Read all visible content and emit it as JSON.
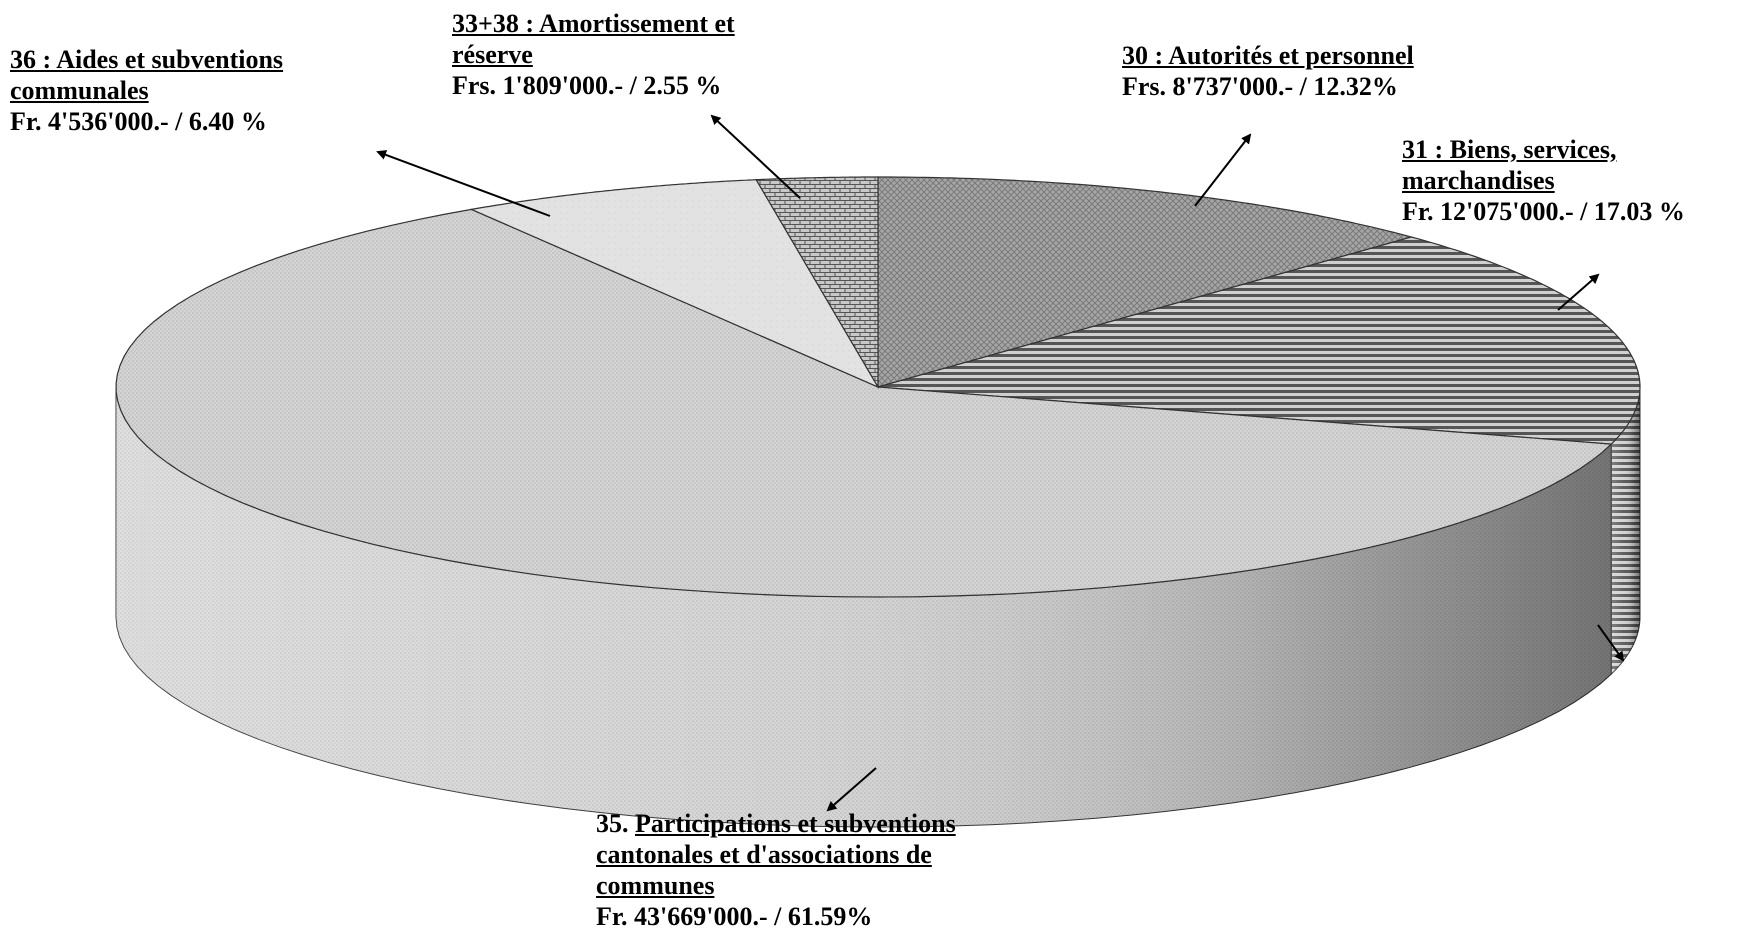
{
  "chart_data": {
    "type": "pie",
    "three_d": true,
    "title": "",
    "legend": "none",
    "slices": [
      {
        "code": "30",
        "label": "30 : Autorités et personnel",
        "amount": "Frs.  8'737'000.- / 12.32%",
        "value": 8737000,
        "percent": 12.32
      },
      {
        "code": "31",
        "label": "31 : Biens, services, marchandises",
        "label_lines": [
          "31 : Biens, services,",
          "marchandises"
        ],
        "amount": "Fr. 12'075'000.- / 17.03 %",
        "value": 12075000,
        "percent": 17.03
      },
      {
        "code": "35",
        "label": "35. Participations et subventions cantonales et d'associations de communes",
        "prefix": "35. ",
        "label_lines": [
          "Participations et subventions",
          "cantonales et d'associations de",
          "communes"
        ],
        "amount": "Fr.  43'669'000.- / 61.59%",
        "value": 43669000,
        "percent": 61.59
      },
      {
        "code": "36",
        "label": "36 : Aides et subventions communales",
        "label_lines": [
          "36 : Aides et subventions",
          "communales"
        ],
        "amount": "Fr. 4'536'000.- /  6.40 %",
        "value": 4536000,
        "percent": 6.4
      },
      {
        "code": "33+38",
        "label": "33+38 : Amortissement et réserve",
        "label_lines": [
          "33+38 : Amortissement et",
          "réserve"
        ],
        "amount": "Frs. 1'809'000.- / 2.55 %",
        "value": 1809000,
        "percent": 2.55
      }
    ]
  }
}
